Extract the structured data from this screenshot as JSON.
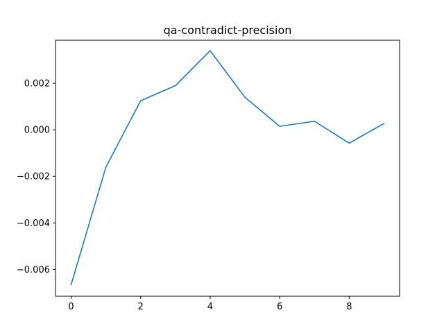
{
  "chart_data": {
    "type": "line",
    "title": "qa-contradict-precision",
    "xlabel": "",
    "ylabel": "",
    "xlim": [
      -0.45,
      9.45
    ],
    "ylim": [
      -0.00715,
      0.00385
    ],
    "x_ticks": [
      0,
      2,
      4,
      6,
      8
    ],
    "x_tick_labels": [
      "0",
      "2",
      "4",
      "6",
      "8"
    ],
    "y_ticks": [
      -0.006,
      -0.004,
      -0.002,
      0.0,
      0.002
    ],
    "y_tick_labels": [
      "−0.006",
      "−0.004",
      "−0.002",
      "0.000",
      "0.002"
    ],
    "grid": false,
    "legend": "none",
    "series": [
      {
        "color": "#1f77b4",
        "x": [
          0,
          1,
          2,
          3,
          4,
          5,
          6,
          7,
          8,
          9
        ],
        "values": [
          -0.00665,
          -0.0016,
          0.00125,
          0.0019,
          0.0034,
          0.0014,
          0.00015,
          0.00037,
          -0.00057,
          0.00027
        ]
      }
    ]
  }
}
